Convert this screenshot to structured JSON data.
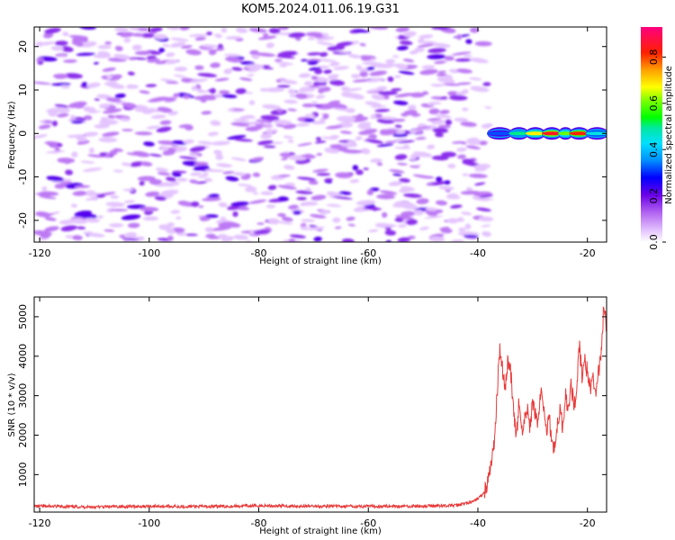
{
  "title": "KOM5.2024.011.06.19.G31",
  "chart_data": [
    {
      "type": "heatmap",
      "xlabel": "Height of straight line (km)",
      "ylabel": "Frequency (Hz)",
      "xlim": [
        -121,
        -16.5
      ],
      "ylim": [
        -25,
        24.5
      ],
      "x_ticks": [
        "-120",
        "-100",
        "-80",
        "-60",
        "-40",
        "-20"
      ],
      "y_ticks": [
        "20",
        "10",
        "0",
        "-10",
        "-20"
      ],
      "colorbar": {
        "label": "Normalized spectral amplitude",
        "ticks": [
          "0.0",
          "0.2",
          "0.4",
          "0.6",
          "0.8"
        ],
        "range": [
          0,
          0.93
        ]
      },
      "noise_region": {
        "x_range": [
          -120,
          -38
        ],
        "y_range": [
          -25,
          24.5
        ],
        "typical_value": 0.1
      },
      "signal_band": {
        "x_range": [
          -38,
          -16.5
        ],
        "frequency_hz": 0,
        "peak_value": 0.9
      }
    },
    {
      "type": "line",
      "xlabel": "Height of straight line (km)",
      "ylabel": "SNR (10 * v/v)",
      "xlim": [
        -121,
        -16.5
      ],
      "ylim": [
        50,
        5500
      ],
      "x_ticks": [
        "-120",
        "-100",
        "-80",
        "-60",
        "-40",
        "-20"
      ],
      "y_ticks": [
        "1000",
        "2000",
        "3000",
        "4000",
        "5000"
      ],
      "series_color": "#e83a3a",
      "series": [
        {
          "x": [
            -121,
            -110,
            -100,
            -90,
            -80,
            -70,
            -60,
            -50,
            -44,
            -41,
            -39,
            -38,
            -37,
            -36.5,
            -36,
            -35.5,
            -35,
            -34.5,
            -34,
            -33.5,
            -33,
            -32.5,
            -32,
            -31,
            -30.5,
            -30,
            -29,
            -28.5,
            -28,
            -27.5,
            -27,
            -26.5,
            -26,
            -25.5,
            -25,
            -24.5,
            -24,
            -23.5,
            -23,
            -22.5,
            -22,
            -21.5,
            -21,
            -20.5,
            -20,
            -19.5,
            -19,
            -18.5,
            -18,
            -17.5,
            -17,
            -16.5
          ],
          "y": [
            200,
            180,
            200,
            190,
            210,
            200,
            195,
            200,
            220,
            300,
            500,
            900,
            1800,
            3000,
            4250,
            3700,
            3200,
            3900,
            3600,
            2600,
            1900,
            2800,
            2100,
            2700,
            2200,
            2800,
            2300,
            3200,
            2600,
            2100,
            2500,
            1900,
            1600,
            2300,
            2600,
            2200,
            3100,
            2600,
            3300,
            2800,
            3000,
            4300,
            3500,
            3900,
            3600,
            3200,
            3400,
            3000,
            3600,
            3900,
            5350,
            4600
          ]
        }
      ]
    }
  ]
}
